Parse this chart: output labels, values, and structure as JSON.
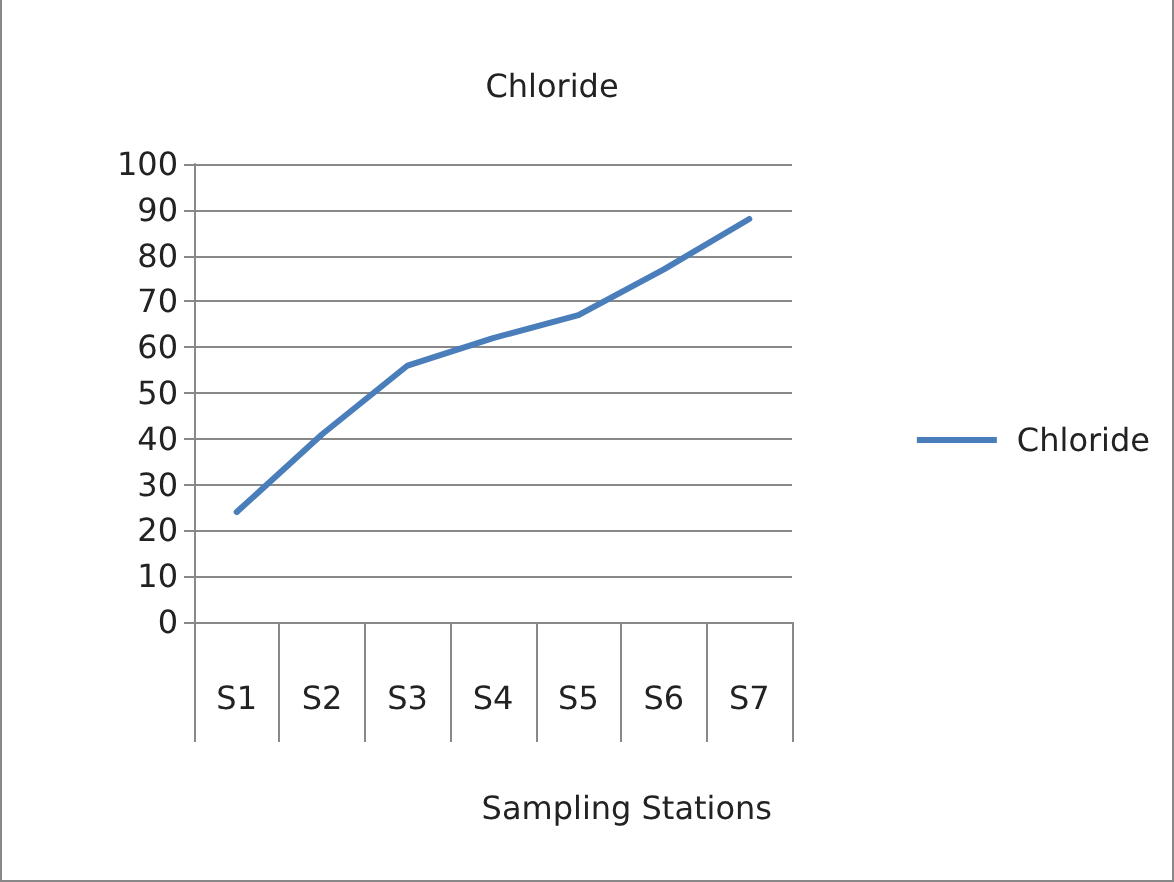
{
  "chart_data": {
    "type": "line",
    "title": "Chloride",
    "xlabel": "Sampling Stations",
    "categories": [
      "S1",
      "S2",
      "S3",
      "S4",
      "S5",
      "S6",
      "S7"
    ],
    "series": [
      {
        "name": "Chloride",
        "color": "#4a7ebb",
        "values": [
          24,
          41,
          56,
          62,
          67,
          77,
          88
        ]
      }
    ],
    "ylim": [
      0,
      100
    ],
    "yticks": [
      0,
      10,
      20,
      30,
      40,
      50,
      60,
      70,
      80,
      90,
      100
    ],
    "grid": "y",
    "legend": "right",
    "marker": "none",
    "line_style": "solid"
  }
}
